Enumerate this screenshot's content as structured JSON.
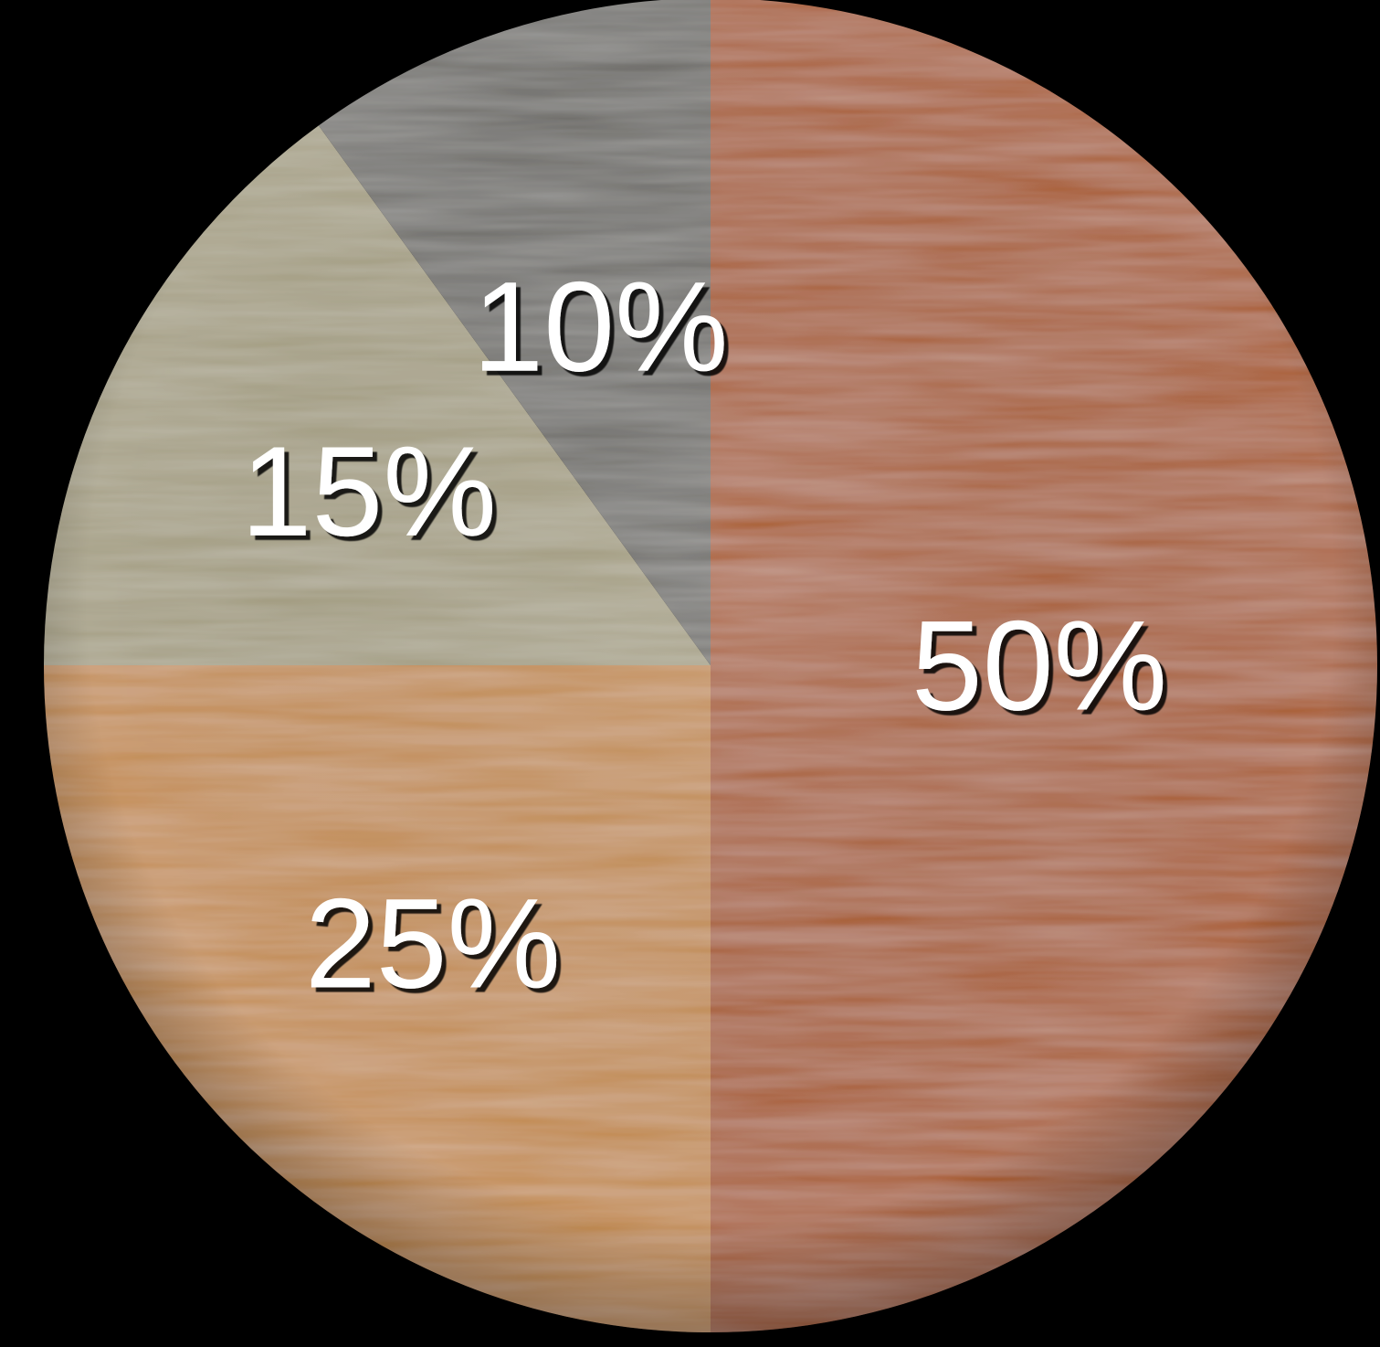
{
  "background": "#000000",
  "chart_data": {
    "type": "pie",
    "title": "",
    "start_angle_deg": 0,
    "direction": "clockwise",
    "slices": [
      {
        "value": 50,
        "label": "50%",
        "color": "#A85A2C"
      },
      {
        "value": 25,
        "label": "25%",
        "color": "#C28A4E"
      },
      {
        "value": 15,
        "label": "15%",
        "color": "#A39C80"
      },
      {
        "value": 10,
        "label": "10%",
        "color": "#6C6A66"
      }
    ],
    "legend": "none",
    "texture": "brushed-wood"
  }
}
